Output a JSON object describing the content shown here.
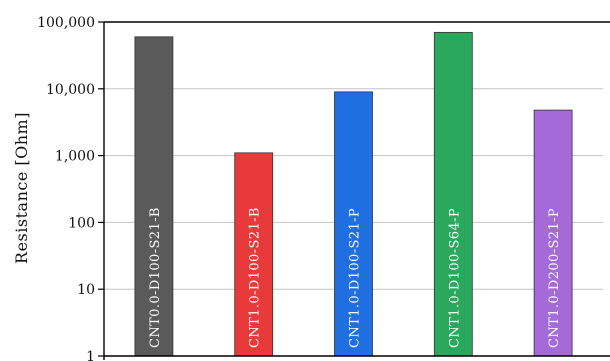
{
  "chart_data": {
    "type": "bar",
    "title": "",
    "xlabel": "",
    "ylabel": "Resistance [Ohm]",
    "yscale": "log",
    "ylim": [
      1,
      100000
    ],
    "yticks": [
      1,
      10,
      100,
      1000,
      10000,
      100000
    ],
    "ytick_labels": [
      "1",
      "10",
      "100",
      "1,000",
      "10,000",
      "100,000"
    ],
    "grid": {
      "horizontal": true,
      "vertical": false
    },
    "legend": "none",
    "categories": [
      "CNT0.0-D100-S21-B",
      "CNT1.0-D100-S21-B",
      "CNT1.0-D100-S21-P",
      "CNT1.0-D100-S64-P",
      "CNT1.0-D200-S21-P"
    ],
    "values": [
      60000,
      1100,
      9000,
      70000,
      4800
    ],
    "colors": [
      "#5a5a5a",
      "#e83a3a",
      "#1f6fe0",
      "#2aa85e",
      "#a46ad8"
    ],
    "category_label_placement": "inside-bar-vertical"
  }
}
